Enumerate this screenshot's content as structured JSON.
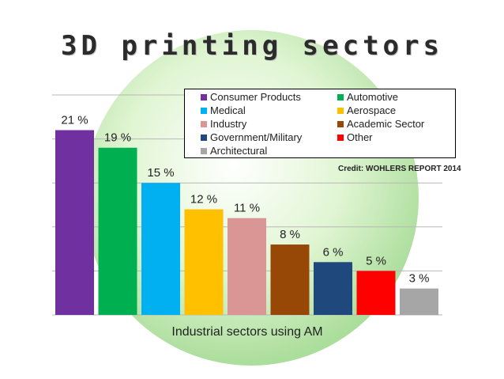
{
  "title": "3D printing sectors",
  "credit": "Credit: WOHLERS REPORT 2014",
  "chart_data": {
    "type": "bar",
    "title": "3D printing sectors",
    "xlabel": "Industrial sectors using AM",
    "ylabel": "",
    "ylim": [
      0,
      25
    ],
    "grid": true,
    "legend_position": "top-right",
    "categories": [
      "Consumer Products",
      "Automotive",
      "Medical",
      "Aerospace",
      "Industry",
      "Academic Sector",
      "Government/Military",
      "Other",
      "Architectural"
    ],
    "values": [
      21,
      19,
      15,
      12,
      11,
      8,
      6,
      5,
      3
    ],
    "data_labels": [
      "21 %",
      "19 %",
      "15 %",
      "12 %",
      "11 %",
      "8 %",
      "6 %",
      "5 %",
      "3 %"
    ],
    "colors": [
      "#7030a0",
      "#00b050",
      "#00b0f0",
      "#ffc000",
      "#da9694",
      "#974706",
      "#1f497d",
      "#ff0000",
      "#a6a6a6"
    ]
  }
}
